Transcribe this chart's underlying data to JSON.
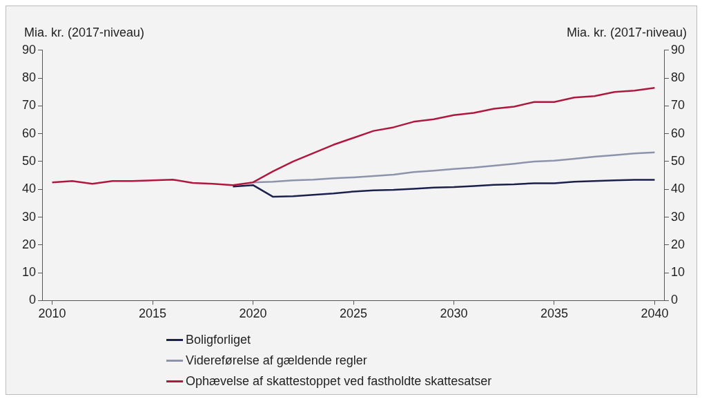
{
  "chart_data": {
    "type": "line",
    "ylabel": "Mia. kr. (2017-niveau)",
    "y2label": "Mia. kr. (2017-niveau)",
    "x": [
      2010,
      2011,
      2012,
      2013,
      2014,
      2015,
      2016,
      2017,
      2018,
      2019,
      2020,
      2021,
      2022,
      2023,
      2024,
      2025,
      2026,
      2027,
      2028,
      2029,
      2030,
      2031,
      2032,
      2033,
      2034,
      2035,
      2036,
      2037,
      2038,
      2039,
      2040
    ],
    "series": [
      {
        "name": "Boligforliget",
        "color": "#1b1f4b",
        "values": [
          null,
          null,
          null,
          null,
          null,
          null,
          null,
          null,
          null,
          41,
          41.5,
          37.3,
          37.5,
          38,
          38.5,
          39.2,
          39.6,
          39.8,
          40.2,
          40.6,
          40.8,
          41.2,
          41.6,
          41.8,
          42.2,
          42.2,
          42.7,
          43,
          43.2,
          43.4,
          43.4
        ]
      },
      {
        "name": "Videreførelse af gældende regler",
        "color": "#8c93aa",
        "values": [
          null,
          null,
          null,
          null,
          null,
          null,
          null,
          null,
          null,
          null,
          42.5,
          42.7,
          43.2,
          43.5,
          44,
          44.3,
          44.8,
          45.3,
          46.2,
          46.7,
          47.3,
          47.8,
          48.5,
          49.2,
          50,
          50.3,
          51,
          51.7,
          52.3,
          52.9,
          53.3
        ]
      },
      {
        "name": "Ophævelse af skattestoppet ved fastholdte skattesatser",
        "color": "#b0173f",
        "values": [
          42.5,
          43,
          42,
          43,
          43,
          43.2,
          43.5,
          42.3,
          42,
          41.5,
          42.5,
          46.5,
          50,
          53,
          56,
          58.5,
          61,
          62.3,
          64.3,
          65.2,
          66.7,
          67.5,
          69,
          69.7,
          71.4,
          71.4,
          73,
          73.5,
          75,
          75.5,
          76.5
        ]
      }
    ],
    "xlim": [
      2009.5,
      2040.5
    ],
    "xticks": [
      2010,
      2015,
      2020,
      2025,
      2030,
      2035,
      2040
    ],
    "ylim": [
      0,
      90
    ],
    "yticks": [
      0,
      10,
      20,
      30,
      40,
      50,
      60,
      70,
      80,
      90
    ],
    "y2lim": [
      0,
      90
    ],
    "y2ticks": [
      0,
      10,
      20,
      30,
      40,
      50,
      60,
      70,
      80,
      90
    ],
    "grid": false,
    "legend": "bottom",
    "marker": "none",
    "line_style": "solid"
  }
}
